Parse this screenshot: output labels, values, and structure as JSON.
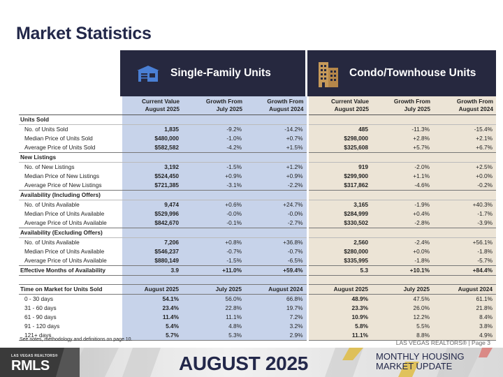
{
  "page": {
    "title": "Market Statistics"
  },
  "headers": {
    "single_family": "Single-Family Units",
    "condo": "Condo/Townhouse Units",
    "single_family_icon": "house-icon",
    "condo_icon": "building-icon"
  },
  "columns": {
    "current_1": "Current Value",
    "current_2": "August 2025",
    "month_1": "Growth From",
    "month_2": "July 2025",
    "year_1": "Growth From",
    "year_2": "August 2024"
  },
  "sections": [
    {
      "title": "Units Sold",
      "rows": [
        {
          "label": "No. of Units Sold",
          "sf": [
            "1,835",
            "-9.2%",
            "-14.2%"
          ],
          "ct": [
            "485",
            "-11.3%",
            "-15.4%"
          ]
        },
        {
          "label": "Median Price of Units Sold",
          "sf": [
            "$480,000",
            "-1.0%",
            "+0.7%"
          ],
          "ct": [
            "$298,000",
            "+2.8%",
            "+2.1%"
          ]
        },
        {
          "label": "Average Price of Units Sold",
          "sf": [
            "$582,582",
            "-4.2%",
            "+1.5%"
          ],
          "ct": [
            "$325,608",
            "+5.7%",
            "+6.7%"
          ]
        }
      ]
    },
    {
      "title": "New Listings",
      "rows": [
        {
          "label": "No. of New Listings",
          "sf": [
            "3,192",
            "-1.5%",
            "+1.2%"
          ],
          "ct": [
            "919",
            "-2.0%",
            "+2.5%"
          ]
        },
        {
          "label": "Median Price of New Listings",
          "sf": [
            "$524,450",
            "+0.9%",
            "+0.9%"
          ],
          "ct": [
            "$299,900",
            "+1.1%",
            "+0.0%"
          ]
        },
        {
          "label": "Average Price of New Listings",
          "sf": [
            "$721,385",
            "-3.1%",
            "-2.2%"
          ],
          "ct": [
            "$317,862",
            "-4.6%",
            "-0.2%"
          ]
        }
      ]
    },
    {
      "title": "Availability (Including Offers)",
      "rows": [
        {
          "label": "No. of Units Available",
          "sf": [
            "9,474",
            "+0.6%",
            "+24.7%"
          ],
          "ct": [
            "3,165",
            "-1.9%",
            "+40.3%"
          ]
        },
        {
          "label": "Median Price of Units Available",
          "sf": [
            "$529,996",
            "-0.0%",
            "-0.0%"
          ],
          "ct": [
            "$284,999",
            "+0.4%",
            "-1.7%"
          ]
        },
        {
          "label": "Average Price of Units Available",
          "sf": [
            "$842,670",
            "-0.1%",
            "-2.7%"
          ],
          "ct": [
            "$330,502",
            "-2.8%",
            "-3.9%"
          ]
        }
      ]
    },
    {
      "title": "Availability (Excluding Offers)",
      "rows": [
        {
          "label": "No. of Units Available",
          "sf": [
            "7,206",
            "+0.8%",
            "+36.8%"
          ],
          "ct": [
            "2,560",
            "-2.4%",
            "+56.1%"
          ]
        },
        {
          "label": "Median Price of Units Available",
          "sf": [
            "$546,237",
            "-0.7%",
            "-0.7%"
          ],
          "ct": [
            "$280,000",
            "+0.0%",
            "-1.8%"
          ]
        },
        {
          "label": "Average Price of Units Available",
          "sf": [
            "$880,149",
            "-1.5%",
            "-6.5%"
          ],
          "ct": [
            "$335,995",
            "-1.8%",
            "-5.7%"
          ]
        }
      ]
    }
  ],
  "effective": {
    "label": "Effective Months of Availability",
    "sf": [
      "3.9",
      "+11.0%",
      "+59.4%"
    ],
    "ct": [
      "5.3",
      "+10.1%",
      "+84.4%"
    ]
  },
  "time_on_market": {
    "title": "Time on Market for Units Sold",
    "headers": [
      "August 2025",
      "July 2025",
      "August 2024",
      "August 2025",
      "July 2025",
      "August 2024"
    ],
    "rows": [
      {
        "label": "0 - 30 days",
        "sf": [
          "54.1%",
          "56.0%",
          "66.8%"
        ],
        "ct": [
          "48.9%",
          "47.5%",
          "61.1%"
        ]
      },
      {
        "label": "31 - 60 days",
        "sf": [
          "23.4%",
          "22.8%",
          "19.7%"
        ],
        "ct": [
          "23.3%",
          "26.0%",
          "21.8%"
        ]
      },
      {
        "label": "61 - 90 days",
        "sf": [
          "11.4%",
          "11.1%",
          "7.2%"
        ],
        "ct": [
          "10.9%",
          "12.2%",
          "8.4%"
        ]
      },
      {
        "label": "91 - 120 days",
        "sf": [
          "5.4%",
          "4.8%",
          "3.2%"
        ],
        "ct": [
          "5.8%",
          "5.5%",
          "3.8%"
        ]
      },
      {
        "label": "121+ days",
        "sf": [
          "5.7%",
          "5.3%",
          "2.9%"
        ],
        "ct": [
          "11.1%",
          "8.8%",
          "4.9%"
        ]
      }
    ]
  },
  "footer": {
    "note": "See notes, methodology and definitions on page 10.",
    "page_ref": "LAS VEGAS REALTORS® | Page 3",
    "logo_small": "LAS VEGAS REALTORS®",
    "logo_main": "MLS",
    "logo_prefix": "R",
    "month": "AUGUST 2025",
    "report_line1": "MONTHLY HOUSING",
    "report_line2": "MARKET UPDATE"
  }
}
